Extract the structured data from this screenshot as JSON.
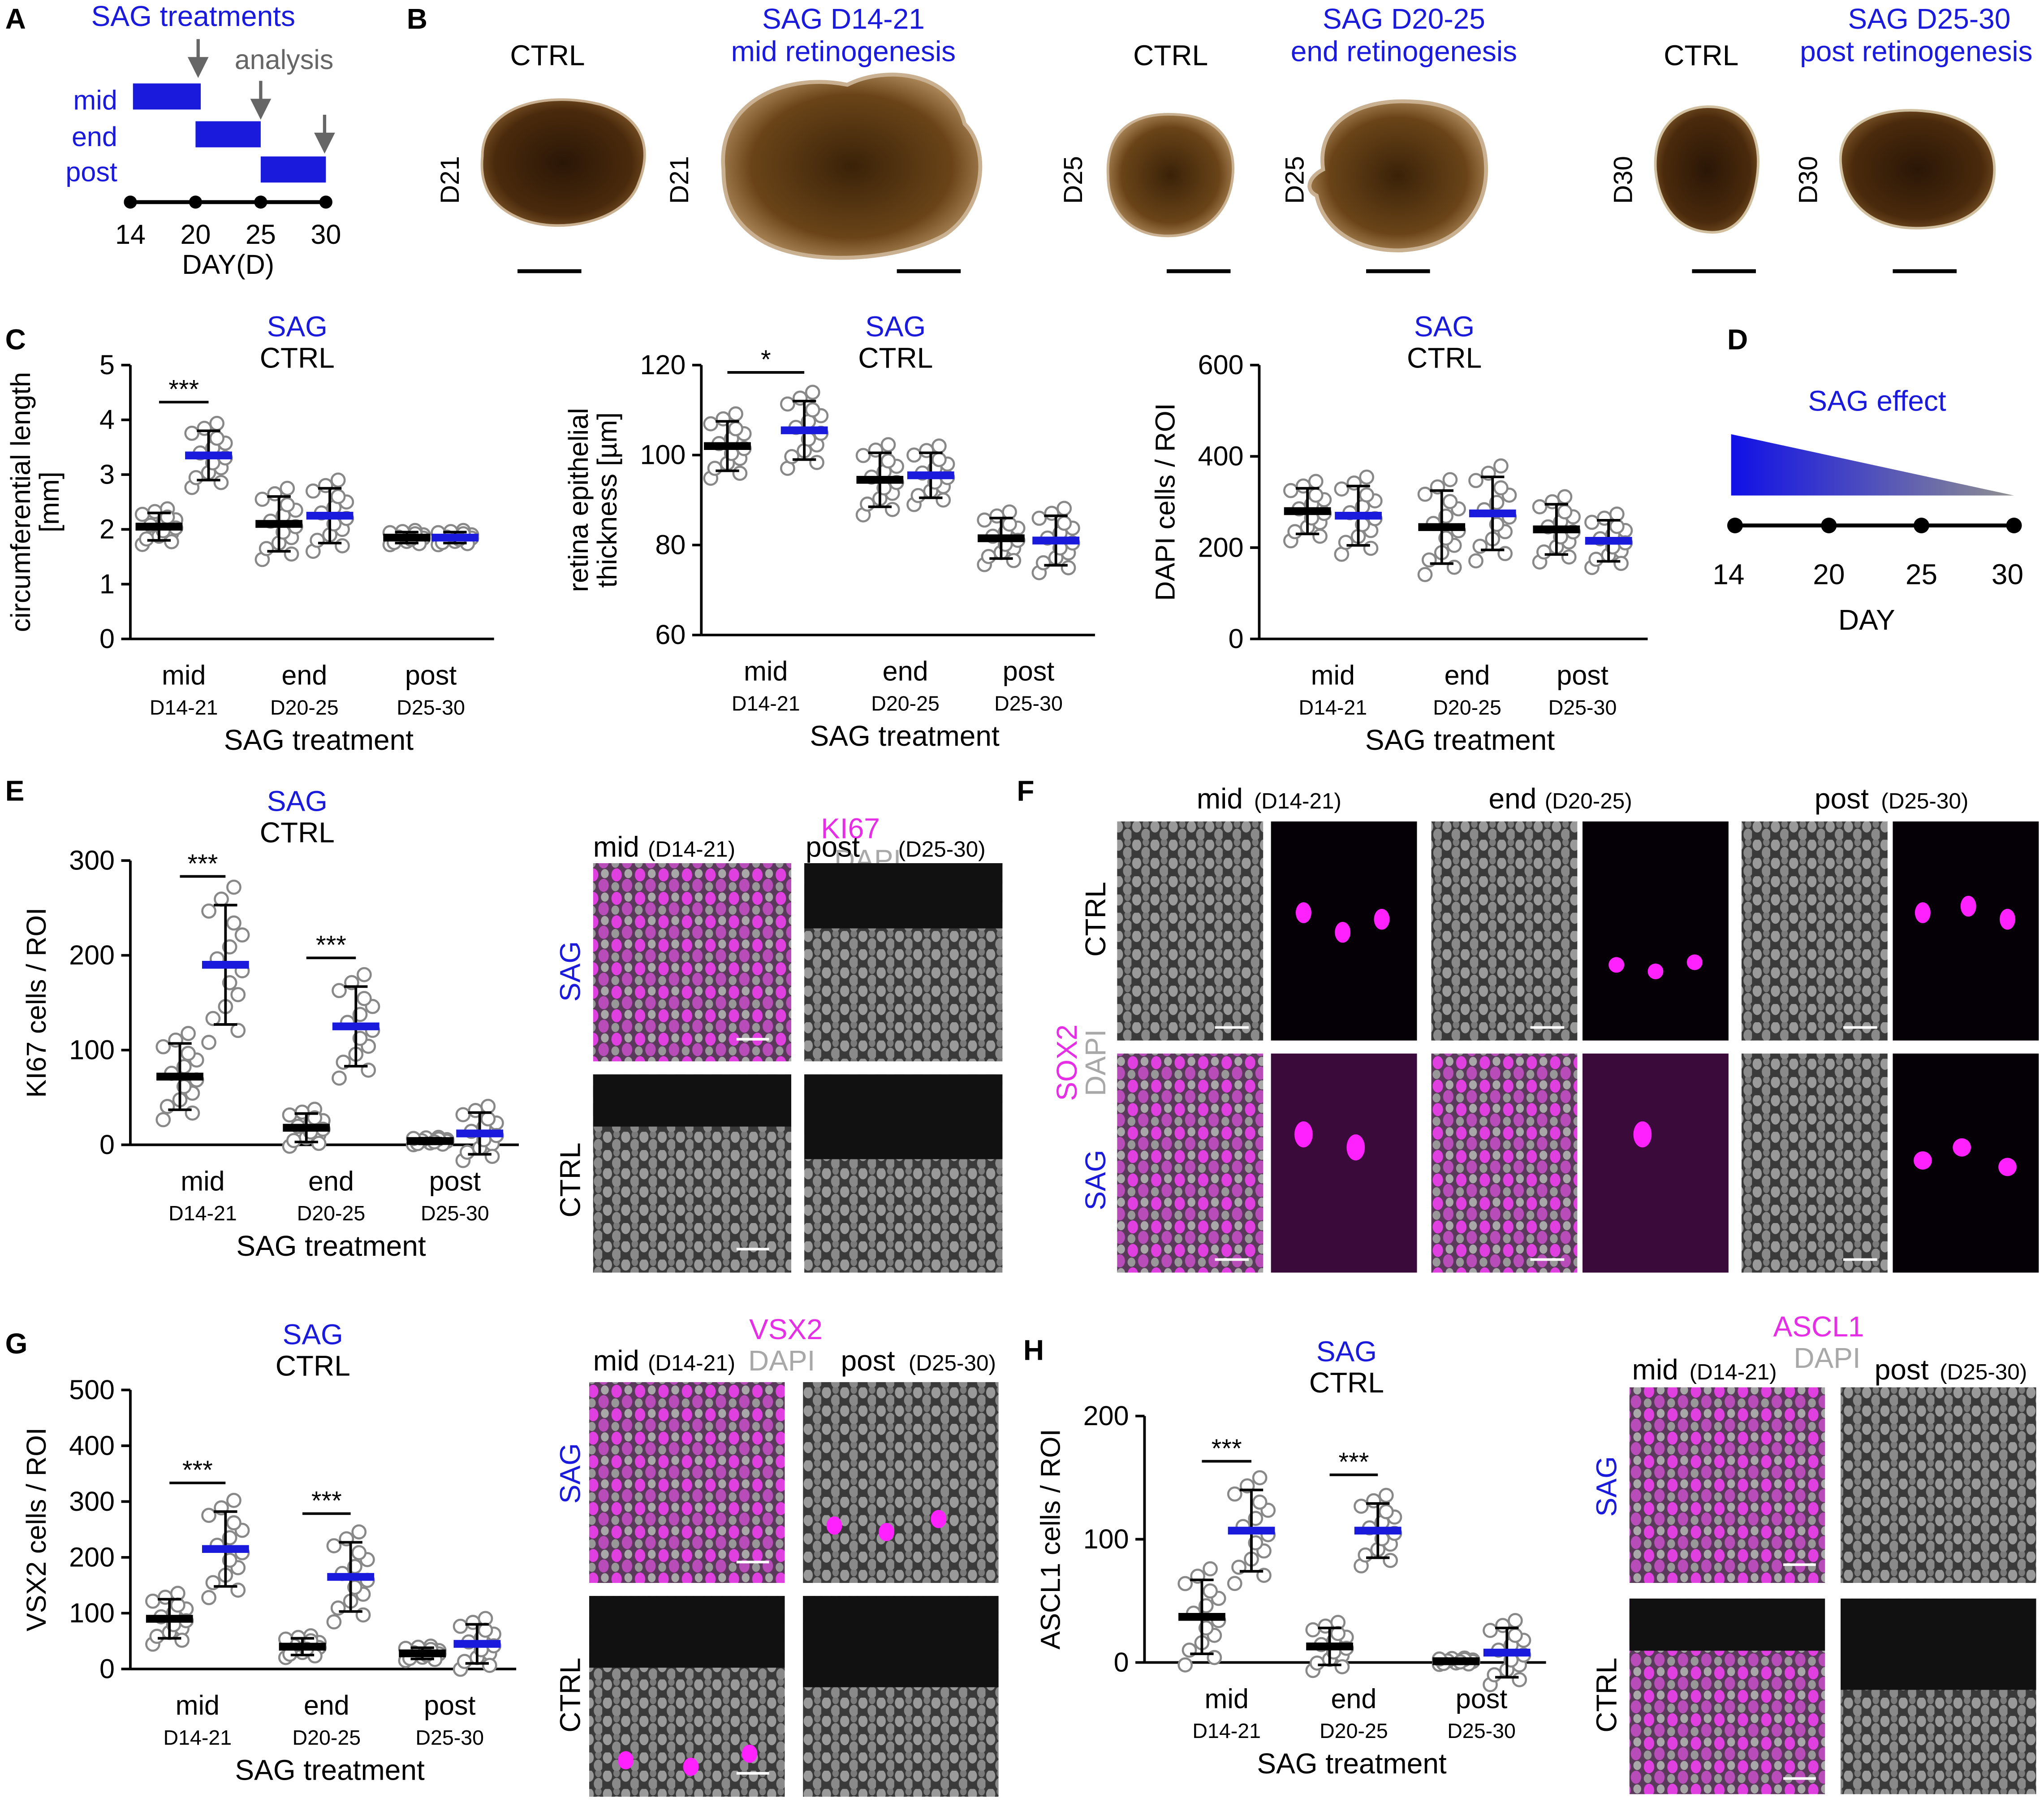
{
  "colors": {
    "sag": "#1a1adc",
    "ctrl": "#000000",
    "magenta": "#e62ee6",
    "gray": "#888888",
    "dapi": "#a8a8a8"
  },
  "panelA": {
    "letter": "A",
    "title": "SAG treatments",
    "analysis": "analysis",
    "rows": [
      "mid",
      "end",
      "post"
    ],
    "ticks": [
      "14",
      "20",
      "25",
      "30"
    ],
    "axis": "DAY(D)"
  },
  "panelB": {
    "letter": "B",
    "groups": [
      {
        "ctrl_label": "CTRL",
        "sag_label1": "SAG D14-21",
        "sag_label2": "mid retinogenesis",
        "day": "D21"
      },
      {
        "ctrl_label": "CTRL",
        "sag_label1": "SAG D20-25",
        "sag_label2": "end retinogenesis",
        "day": "D25"
      },
      {
        "ctrl_label": "CTRL",
        "sag_label1": "SAG D25-30",
        "sag_label2": "post retinogenesis",
        "day": "D30"
      }
    ]
  },
  "legend": {
    "sag": "SAG",
    "ctrl": "CTRL"
  },
  "panelD": {
    "letter": "D",
    "title": "SAG effect",
    "ticks": [
      "14",
      "20",
      "25",
      "30"
    ],
    "axis": "DAY"
  },
  "panelF": {
    "letter": "F",
    "columns": [
      {
        "name": "mid",
        "range": "(D14-21)"
      },
      {
        "name": "end",
        "range": "(D20-25)"
      },
      {
        "name": "post",
        "range": "(D25-30)"
      }
    ],
    "rows": [
      "CTRL",
      "SAG"
    ],
    "marker": "SOX2",
    "dapi": "DAPI"
  },
  "micro": {
    "E": {
      "marker": "KI67",
      "dapi": "DAPI",
      "col1": "mid",
      "col1r": "(D14-21)",
      "col2": "post",
      "col2r": "(D25-30)",
      "row1": "SAG",
      "row2": "CTRL"
    },
    "G": {
      "marker": "VSX2",
      "dapi": "DAPI",
      "col1": "mid",
      "col1r": "(D14-21)",
      "col2": "post",
      "col2r": "(D25-30)",
      "row1": "SAG",
      "row2": "CTRL"
    },
    "H": {
      "marker": "ASCL1",
      "dapi": "DAPI",
      "col1": "mid",
      "col1r": "(D14-21)",
      "col2": "post",
      "col2r": "(D25-30)",
      "row1": "SAG",
      "row2": "CTRL"
    }
  },
  "chart_data": [
    {
      "panel": "C1",
      "type": "scatter",
      "ylabel": "circumferential length [mm]",
      "xlabel": "SAG treatment",
      "ylim": [
        0,
        5
      ],
      "yticks": [
        0,
        1,
        2,
        3,
        4,
        5
      ],
      "categories": [
        "mid",
        "end",
        "post"
      ],
      "subcategories": [
        "D14-21",
        "D20-25",
        "D25-30"
      ],
      "series": [
        {
          "name": "CTRL",
          "mean": [
            2.05,
            2.1,
            1.85
          ],
          "sd": [
            0.25,
            0.5,
            0.1
          ]
        },
        {
          "name": "SAG",
          "mean": [
            3.35,
            2.25,
            1.85
          ],
          "sd": [
            0.45,
            0.5,
            0.1
          ]
        }
      ],
      "significance": [
        "***",
        "",
        ""
      ]
    },
    {
      "panel": "C2",
      "type": "scatter",
      "ylabel": "retina epithelial thickness [µm]",
      "xlabel": "SAG treatment",
      "ylim": [
        60,
        120
      ],
      "yticks": [
        60,
        80,
        100,
        120
      ],
      "categories": [
        "mid",
        "end",
        "post"
      ],
      "subcategories": [
        "D14-21",
        "D20-25",
        "D25-30"
      ],
      "series": [
        {
          "name": "CTRL",
          "mean": [
            102,
            94.5,
            81.5
          ],
          "sd": [
            5.5,
            6,
            4.5
          ]
        },
        {
          "name": "SAG",
          "mean": [
            105.5,
            95.5,
            81
          ],
          "sd": [
            6.5,
            5,
            5.5
          ]
        }
      ],
      "significance": [
        "*",
        "",
        ""
      ]
    },
    {
      "panel": "C3",
      "type": "scatter",
      "ylabel": "DAPI cells / ROI",
      "xlabel": "SAG treatment",
      "ylim": [
        0,
        600
      ],
      "yticks": [
        0,
        200,
        400,
        600
      ],
      "categories": [
        "mid",
        "end",
        "post"
      ],
      "subcategories": [
        "D14-21",
        "D20-25",
        "D25-30"
      ],
      "series": [
        {
          "name": "CTRL",
          "mean": [
            280,
            245,
            240
          ],
          "sd": [
            50,
            80,
            55
          ]
        },
        {
          "name": "SAG",
          "mean": [
            270,
            275,
            215
          ],
          "sd": [
            65,
            80,
            45
          ]
        }
      ],
      "significance": [
        "",
        "",
        ""
      ]
    },
    {
      "panel": "E",
      "type": "scatter",
      "ylabel": "KI67 cells / ROI",
      "xlabel": "SAG treatment",
      "ylim": [
        0,
        300
      ],
      "yticks": [
        0,
        100,
        200,
        300
      ],
      "categories": [
        "mid",
        "end",
        "post"
      ],
      "subcategories": [
        "D14-21",
        "D20-25",
        "D25-30"
      ],
      "series": [
        {
          "name": "CTRL",
          "mean": [
            72,
            18,
            4
          ],
          "sd": [
            35,
            15,
            3
          ]
        },
        {
          "name": "SAG",
          "mean": [
            190,
            125,
            12
          ],
          "sd": [
            63,
            42,
            22
          ]
        }
      ],
      "significance": [
        "***",
        "***",
        ""
      ]
    },
    {
      "panel": "G",
      "type": "scatter",
      "ylabel": "VSX2 cells / ROI",
      "xlabel": "SAG treatment",
      "ylim": [
        0,
        500
      ],
      "yticks": [
        0,
        100,
        200,
        300,
        400,
        500
      ],
      "categories": [
        "mid",
        "end",
        "post"
      ],
      "subcategories": [
        "D14-21",
        "D20-25",
        "D25-30"
      ],
      "series": [
        {
          "name": "CTRL",
          "mean": [
            90,
            40,
            28
          ],
          "sd": [
            35,
            15,
            10
          ]
        },
        {
          "name": "SAG",
          "mean": [
            215,
            165,
            45
          ],
          "sd": [
            67,
            62,
            35
          ]
        }
      ],
      "significance": [
        "***",
        "***",
        ""
      ]
    },
    {
      "panel": "H",
      "type": "scatter",
      "ylabel": "ASCL1 cells / ROI",
      "xlabel": "SAG treatment",
      "ylim": [
        0,
        200
      ],
      "yticks": [
        0,
        100,
        200
      ],
      "categories": [
        "mid",
        "end",
        "post"
      ],
      "subcategories": [
        "D14-21",
        "D20-25",
        "D25-30"
      ],
      "series": [
        {
          "name": "CTRL",
          "mean": [
            37,
            13,
            1
          ],
          "sd": [
            30,
            15,
            2
          ]
        },
        {
          "name": "SAG",
          "mean": [
            107,
            107,
            8
          ],
          "sd": [
            33,
            22,
            20
          ]
        }
      ],
      "significance": [
        "***",
        "***",
        ""
      ]
    }
  ]
}
